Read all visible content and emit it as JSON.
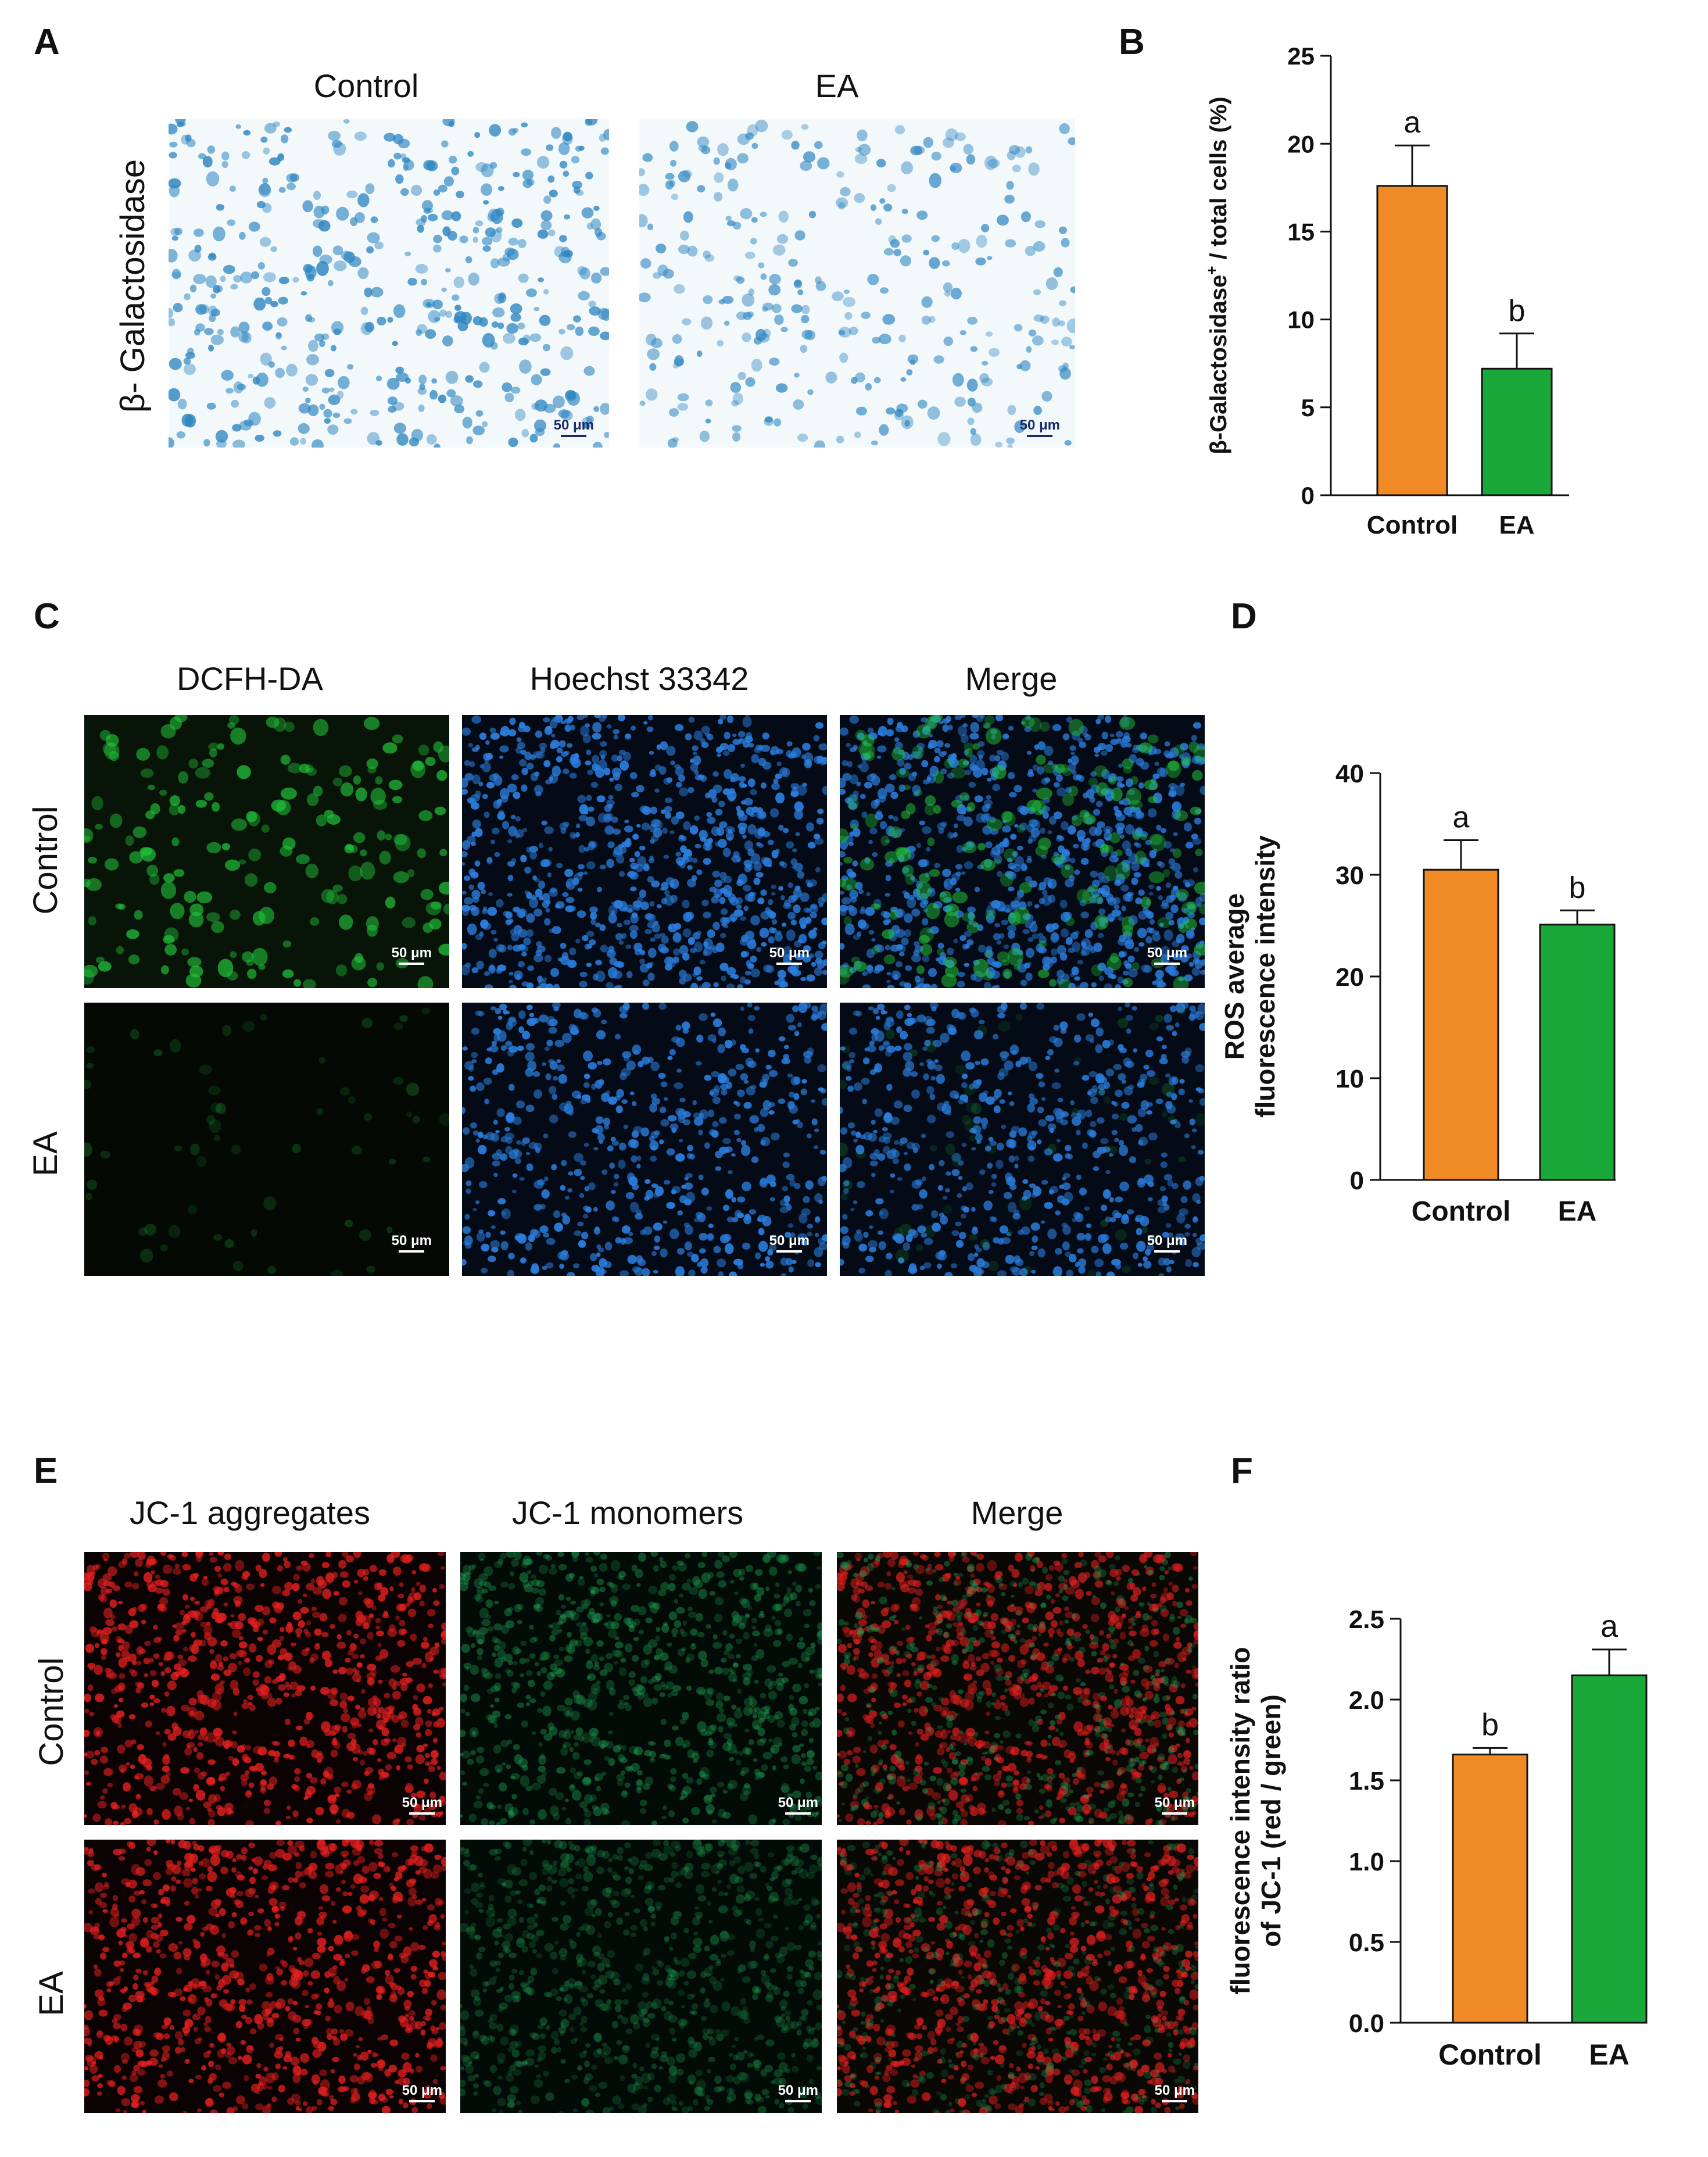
{
  "panels": {
    "A": {
      "letter": "A",
      "col_titles": [
        "Control",
        "EA"
      ],
      "row_label": "β- Galactosidase",
      "scale_bar": "50 μm"
    },
    "B": {
      "letter": "B"
    },
    "C": {
      "letter": "C",
      "col_titles": [
        "DCFH-DA",
        "Hoechst 33342",
        "Merge"
      ],
      "row_labels": [
        "Control",
        "EA"
      ],
      "scale_bar": "50 μm"
    },
    "D": {
      "letter": "D"
    },
    "E": {
      "letter": "E",
      "col_titles": [
        "JC-1 aggregates",
        "JC-1 monomers",
        "Merge"
      ],
      "row_labels": [
        "Control",
        "EA"
      ],
      "scale_bar": "50 μm"
    },
    "F": {
      "letter": "F"
    }
  },
  "colors": {
    "control_bar": "#F08A24",
    "ea_bar": "#1BA83A",
    "beta_gal_stain": "#2E86C1",
    "dcfh_green": "#22C23A",
    "hoechst_blue": "#2B7FE0",
    "jc1_red": "#E82020",
    "jc1_green": "#1FA85A"
  },
  "chart_data": [
    {
      "id": "B",
      "type": "bar",
      "categories": [
        "Control",
        "EA"
      ],
      "values": [
        17.6,
        7.2
      ],
      "errors": [
        2.3,
        2.0
      ],
      "significance": [
        "a",
        "b"
      ],
      "ylabel_main": "β-Galactosidase",
      "ylabel_sup": "+",
      "ylabel_rest": " / total cells (%)",
      "ylim": [
        0,
        25
      ],
      "yticks": [
        0,
        5,
        10,
        15,
        20,
        25
      ],
      "colors": [
        "#F08A24",
        "#1BA83A"
      ]
    },
    {
      "id": "D",
      "type": "bar",
      "categories": [
        "Control",
        "EA"
      ],
      "values": [
        30.5,
        25.1
      ],
      "errors": [
        2.9,
        1.4
      ],
      "significance": [
        "a",
        "b"
      ],
      "ylabel_lines": [
        "ROS average",
        "fluorescence intensity"
      ],
      "ylim": [
        0,
        40
      ],
      "yticks": [
        0,
        10,
        20,
        30,
        40
      ],
      "colors": [
        "#F08A24",
        "#1BA83A"
      ]
    },
    {
      "id": "F",
      "type": "bar",
      "categories": [
        "Control",
        "EA"
      ],
      "values": [
        1.66,
        2.15
      ],
      "errors": [
        0.04,
        0.16
      ],
      "significance": [
        "b",
        "a"
      ],
      "ylabel_lines": [
        "fluorescence intensity ratio",
        "of JC-1 (red / green)"
      ],
      "ylim": [
        0,
        2.5
      ],
      "yticks": [
        "0.0",
        "0.5",
        "1.0",
        "1.5",
        "2.0",
        "2.5"
      ],
      "colors": [
        "#F08A24",
        "#1BA83A"
      ]
    }
  ]
}
